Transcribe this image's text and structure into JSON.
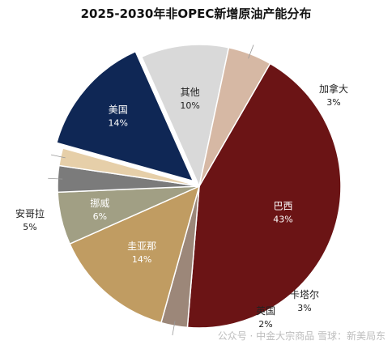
{
  "chart_data": {
    "type": "pie",
    "title": "2025-2030年非OPEC新增原油产能分布",
    "slices": [
      {
        "label": "巴西",
        "value": 43,
        "value_label": "43%",
        "color": "#6b1415"
      },
      {
        "label": "加拿大",
        "value": 3,
        "value_label": "3%",
        "color": "#9c8779"
      },
      {
        "label": "圭亚那",
        "value": 14,
        "value_label": "14%",
        "color": "#c09c62"
      },
      {
        "label": "挪威",
        "value": 6,
        "value_label": "6%",
        "color": "#a19f84"
      },
      {
        "label": "卡塔尔",
        "value": 3,
        "value_label": "3%",
        "color": "#7b7b7b"
      },
      {
        "label": "英国",
        "value": 2,
        "value_label": "2%",
        "color": "#e6cfa9"
      },
      {
        "label": "美国",
        "value": 14,
        "value_label": "14%",
        "color": "#0f2755"
      },
      {
        "label": "其他",
        "value": 10,
        "value_label": "10%",
        "color": "#d9d9d9"
      },
      {
        "label": "安哥拉",
        "value": 5,
        "value_label": "5%",
        "color": "#d6b8a4"
      }
    ]
  },
  "watermark": "公众号 · 中金大宗商品 雪球：新美局东"
}
